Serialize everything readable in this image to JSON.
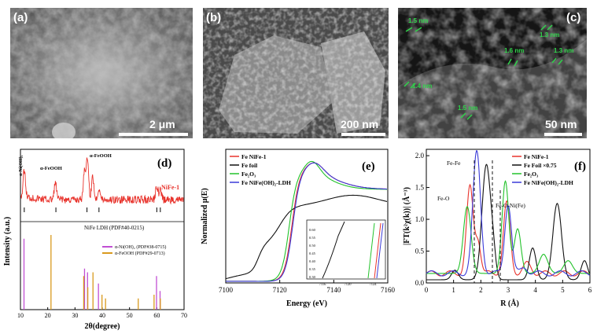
{
  "panels": {
    "a": {
      "label": "(a)",
      "scale": "2 μm"
    },
    "b": {
      "label": "(b)",
      "scale": "200 nm"
    },
    "c": {
      "label": "(c)",
      "scale": "50 nm",
      "measurements": [
        "1.5 nm",
        "1.3 nm",
        "1.6 nm",
        "1.3 nm",
        "1.4 nm",
        "1.5 nm"
      ]
    },
    "d": {
      "label": "(d)"
    },
    "e": {
      "label": "(e)"
    },
    "f": {
      "label": "(f)"
    }
  },
  "chart_data": [
    {
      "type": "line",
      "panel": "d",
      "xlabel": "2θ(degree)",
      "ylabel": "Intensity (a.u.)",
      "xlim": [
        10,
        70
      ],
      "xticks": [
        10,
        20,
        30,
        40,
        50,
        60,
        70
      ],
      "peak_labels": [
        "α-Ni(OH)₂",
        "α-FeOOH",
        "α-FeOOH"
      ],
      "series": [
        {
          "name": "NiFe-1",
          "color": "#e8332c"
        }
      ],
      "reference_labels": [
        "NiFe LDH (PDF#40-0215)"
      ],
      "reference_legend": [
        {
          "name": "α-Ni(OH)₂ (PDF#38-0715)",
          "color": "#c14fd3"
        },
        {
          "name": "α-FeOOH (PDF#29-0713)",
          "color": "#d99a1e"
        }
      ],
      "ref_ldh": [
        11.4,
        23.0,
        34.4,
        38.8,
        60.0,
        61.3
      ],
      "ref_ni": {
        "x": [
          11.3,
          33.5,
          34.6,
          38.6,
          59.9,
          61.2
        ],
        "y": [
          0.95,
          0.55,
          0.5,
          0.35,
          0.45,
          0.25
        ]
      },
      "ref_fe": {
        "x": [
          21.2,
          33.2,
          34.7,
          36.6,
          39.9,
          41.2,
          53.2,
          59.0,
          61.3
        ],
        "y": [
          1.0,
          0.45,
          0.3,
          0.5,
          0.2,
          0.15,
          0.15,
          0.2,
          0.15
        ]
      }
    },
    {
      "type": "line",
      "panel": "e",
      "xlabel": "Energy (eV)",
      "ylabel": "Normalized μ(E)",
      "xlim": [
        7100,
        7160
      ],
      "xticks": [
        7100,
        7120,
        7140,
        7160
      ],
      "ylim": [
        0,
        1.6
      ],
      "series": [
        {
          "name": "Fe NiFe-1",
          "color": "#e8332c"
        },
        {
          "name": "Fe foil",
          "color": "#111111"
        },
        {
          "name": "Fe₂O₃",
          "color": "#22c22a"
        },
        {
          "name": "Fe NiFe(OH)₂-LDH",
          "color": "#3a3ad8"
        }
      ],
      "inset": {
        "xticks": [
          "7116",
          "7120",
          "7124"
        ],
        "yticks": [
          "0.30",
          "0.35",
          "0.40",
          "0.45",
          "0.50",
          "0.55",
          "0.60"
        ]
      }
    },
    {
      "type": "line",
      "panel": "f",
      "xlabel": "R (Å)",
      "ylabel": "|FT(k²χ(k))| (Å⁻³)",
      "xlim": [
        0,
        6
      ],
      "xticks": [
        0,
        1,
        2,
        3,
        4,
        5,
        6
      ],
      "ylim": [
        0,
        2.0
      ],
      "yticks": [
        "0.0",
        "0.5",
        "1.0",
        "1.5",
        "2.0"
      ],
      "annotations": [
        "Fe-Fe",
        "Fe-O",
        "Fe-O-Ni(Fe)"
      ],
      "series": [
        {
          "name": "Fe NiFe-1",
          "color": "#e8332c"
        },
        {
          "name": "Fe Foil ×0.75",
          "color": "#111111"
        },
        {
          "name": "Fe₂O₃",
          "color": "#22c22a"
        },
        {
          "name": "Fe NiFe(OH)₂-LDH",
          "color": "#3a3ad8"
        }
      ]
    }
  ]
}
